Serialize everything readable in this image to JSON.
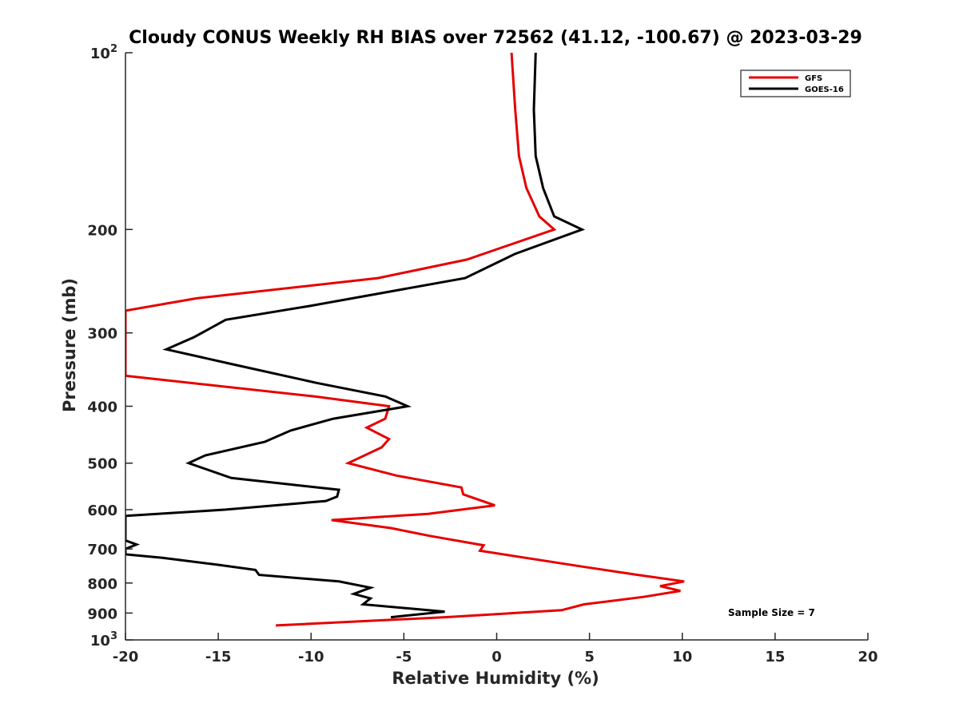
{
  "chart_data": {
    "type": "line",
    "title": "Cloudy CONUS Weekly RH BIAS over 72562 (41.12, -100.67) @ 2023-03-29",
    "xlabel": "Relative Humidity (%)",
    "ylabel": "Pressure (mb)",
    "xlim": [
      -20,
      20
    ],
    "ylim": [
      100,
      1000
    ],
    "yscale": "log",
    "y_reversed": true,
    "grid": false,
    "legend_position": "top-right",
    "x_ticks": [
      -20,
      -15,
      -10,
      -5,
      0,
      5,
      10,
      15,
      20
    ],
    "y_ticks": [
      {
        "value": 100,
        "base": "10",
        "exp": "2"
      },
      {
        "value": 200,
        "label": "200"
      },
      {
        "value": 300,
        "label": "300"
      },
      {
        "value": 400,
        "label": "400"
      },
      {
        "value": 500,
        "label": "500"
      },
      {
        "value": 600,
        "label": "600"
      },
      {
        "value": 700,
        "label": "700"
      },
      {
        "value": 800,
        "label": "800"
      },
      {
        "value": 900,
        "label": "900"
      },
      {
        "value": 1000,
        "base": "10",
        "exp": "3"
      }
    ],
    "annotation": "Sample Size = 7",
    "series": [
      {
        "name": "GFS",
        "color": "#e60000",
        "points": [
          [
            0.8,
            100
          ],
          [
            1.0,
            125
          ],
          [
            1.2,
            150
          ],
          [
            1.6,
            170
          ],
          [
            2.3,
            190
          ],
          [
            3.1,
            200
          ],
          [
            -1.6,
            225
          ],
          [
            -6.4,
            242
          ],
          [
            -16.2,
            262
          ],
          [
            -20.0,
            275
          ],
          [
            -20.0,
            355
          ],
          [
            -9.8,
            385
          ],
          [
            -5.8,
            400
          ],
          [
            -6.0,
            420
          ],
          [
            -7.0,
            435
          ],
          [
            -5.8,
            455
          ],
          [
            -6.2,
            470
          ],
          [
            -8.0,
            500
          ],
          [
            -5.4,
            525
          ],
          [
            -1.9,
            550
          ],
          [
            -1.8,
            565
          ],
          [
            -0.1,
            590
          ],
          [
            -3.7,
            610
          ],
          [
            -8.9,
            625
          ],
          [
            -5.7,
            645
          ],
          [
            -3.6,
            665
          ],
          [
            -0.7,
            690
          ],
          [
            -0.9,
            705
          ],
          [
            4.6,
            750
          ],
          [
            7.6,
            775
          ],
          [
            10.1,
            795
          ],
          [
            8.8,
            810
          ],
          [
            9.9,
            825
          ],
          [
            7.9,
            845
          ],
          [
            4.7,
            870
          ],
          [
            3.5,
            890
          ],
          [
            -2.8,
            915
          ],
          [
            -11.9,
            945
          ]
        ]
      },
      {
        "name": "GOES-16",
        "color": "#000000",
        "points": [
          [
            2.1,
            100
          ],
          [
            2.0,
            125
          ],
          [
            2.1,
            150
          ],
          [
            2.5,
            170
          ],
          [
            3.1,
            190
          ],
          [
            4.6,
            200
          ],
          [
            1.0,
            220
          ],
          [
            -1.7,
            242
          ],
          [
            -10.1,
            270
          ],
          [
            -14.6,
            285
          ],
          [
            -16.3,
            305
          ],
          [
            -17.8,
            320
          ],
          [
            -14.1,
            340
          ],
          [
            -9.7,
            365
          ],
          [
            -6.0,
            385
          ],
          [
            -4.8,
            400
          ],
          [
            -8.8,
            420
          ],
          [
            -11.1,
            440
          ],
          [
            -12.5,
            460
          ],
          [
            -15.7,
            485
          ],
          [
            -16.6,
            500
          ],
          [
            -14.3,
            530
          ],
          [
            -8.5,
            555
          ],
          [
            -8.6,
            570
          ],
          [
            -9.2,
            580
          ],
          [
            -14.6,
            600
          ],
          [
            -20.0,
            615
          ],
          [
            -20.0,
            677
          ],
          [
            -19.4,
            688
          ],
          [
            -20.0,
            700
          ],
          [
            -20.0,
            715
          ],
          [
            -18.0,
            725
          ],
          [
            -15.0,
            745
          ],
          [
            -13.0,
            760
          ],
          [
            -12.8,
            775
          ],
          [
            -8.5,
            795
          ],
          [
            -6.8,
            815
          ],
          [
            -7.7,
            835
          ],
          [
            -6.8,
            850
          ],
          [
            -7.2,
            870
          ],
          [
            -2.8,
            895
          ],
          [
            -5.7,
            915
          ]
        ]
      }
    ]
  }
}
